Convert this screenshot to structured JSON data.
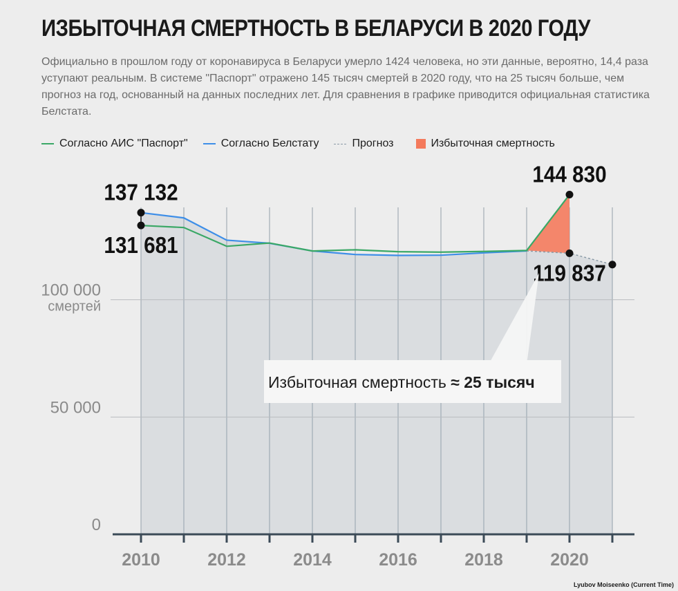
{
  "title": "ИЗБЫТОЧНАЯ СМЕРТНОСТЬ В БЕЛАРУСИ В 2020 ГОДУ",
  "subtitle": "Официально в прошлом году от коронавируса в Беларуси умерло 1424 человека, но эти данные, вероятно, 14,4 раза уступают реальным. В системе \"Паспорт\" отражено 145 тысяч смертей в 2020 году, что на 25 тысяч больше, чем прогноз на год, основанный на данных последних лет. Для сравнения в графике приводится официальная статистика Белстата.",
  "legend": [
    {
      "label": "Согласно АИС \"Паспорт\"",
      "kind": "line",
      "color": "#3aa866"
    },
    {
      "label": "Согласно Белстату",
      "kind": "line",
      "color": "#3d8ee8"
    },
    {
      "label": "Прогноз",
      "kind": "dash",
      "color": "#8a9aa6"
    },
    {
      "label": "Избыточная смертность",
      "kind": "area",
      "color": "#f47a5c"
    }
  ],
  "credit": "Lyubov Moiseenko (Current Time)",
  "colors": {
    "paspport": "#3aa866",
    "belstat": "#3d8ee8",
    "forecast": "#8a9aa6",
    "excess": "#f47a5c",
    "area": "#d6d9dd",
    "axis": "#3b4a57",
    "grid": "#b9bcbf"
  },
  "chart_data": {
    "type": "line",
    "x": [
      2010,
      2011,
      2012,
      2013,
      2014,
      2015,
      2016,
      2017,
      2018,
      2019,
      2020,
      2021
    ],
    "x_tick_labels": [
      "2010",
      "2012",
      "2014",
      "2016",
      "2018",
      "2020"
    ],
    "xlim": [
      2010,
      2021
    ],
    "ylim": [
      0,
      150000
    ],
    "y_tick_labels": [
      {
        "value": 0,
        "label": "0"
      },
      {
        "value": 50000,
        "label": "50 000"
      },
      {
        "value": 100000,
        "label": "100 000",
        "sub": "смертей"
      }
    ],
    "series": [
      {
        "name": "Согласно АИС \"Паспорт\"",
        "x": [
          2010,
          2011,
          2012,
          2013,
          2014,
          2015,
          2016,
          2017,
          2018,
          2019,
          2020
        ],
        "values": [
          131681,
          130800,
          122800,
          124200,
          120800,
          121300,
          120500,
          120300,
          120600,
          121000,
          144830
        ]
      },
      {
        "name": "Согласно Белстату",
        "x": [
          2010,
          2011,
          2012,
          2013,
          2014,
          2015,
          2016,
          2017,
          2018,
          2019
        ],
        "values": [
          137132,
          134900,
          125400,
          124100,
          120800,
          119300,
          118900,
          119000,
          120000,
          120800
        ]
      },
      {
        "name": "Прогноз",
        "x": [
          2019,
          2020,
          2021
        ],
        "values": [
          120800,
          119837,
          115000
        ]
      }
    ],
    "excess_area": {
      "x": [
        2019,
        2020
      ],
      "label": "Избыточная смертность",
      "value_label": "≈ 25 тысяч"
    },
    "point_labels": [
      {
        "x": 2010,
        "y": 137132,
        "text": "137 132",
        "anchor": "above"
      },
      {
        "x": 2010,
        "y": 131681,
        "text": "131 681",
        "anchor": "below"
      },
      {
        "x": 2020,
        "y": 144830,
        "text": "144 830",
        "anchor": "above"
      },
      {
        "x": 2020,
        "y": 119837,
        "text": "119 837",
        "anchor": "below"
      }
    ],
    "end_point": {
      "x": 2021,
      "y": 115000
    },
    "callout": {
      "prefix": "Избыточная смертность",
      "value": "≈ 25 тысяч"
    },
    "grid": true
  }
}
